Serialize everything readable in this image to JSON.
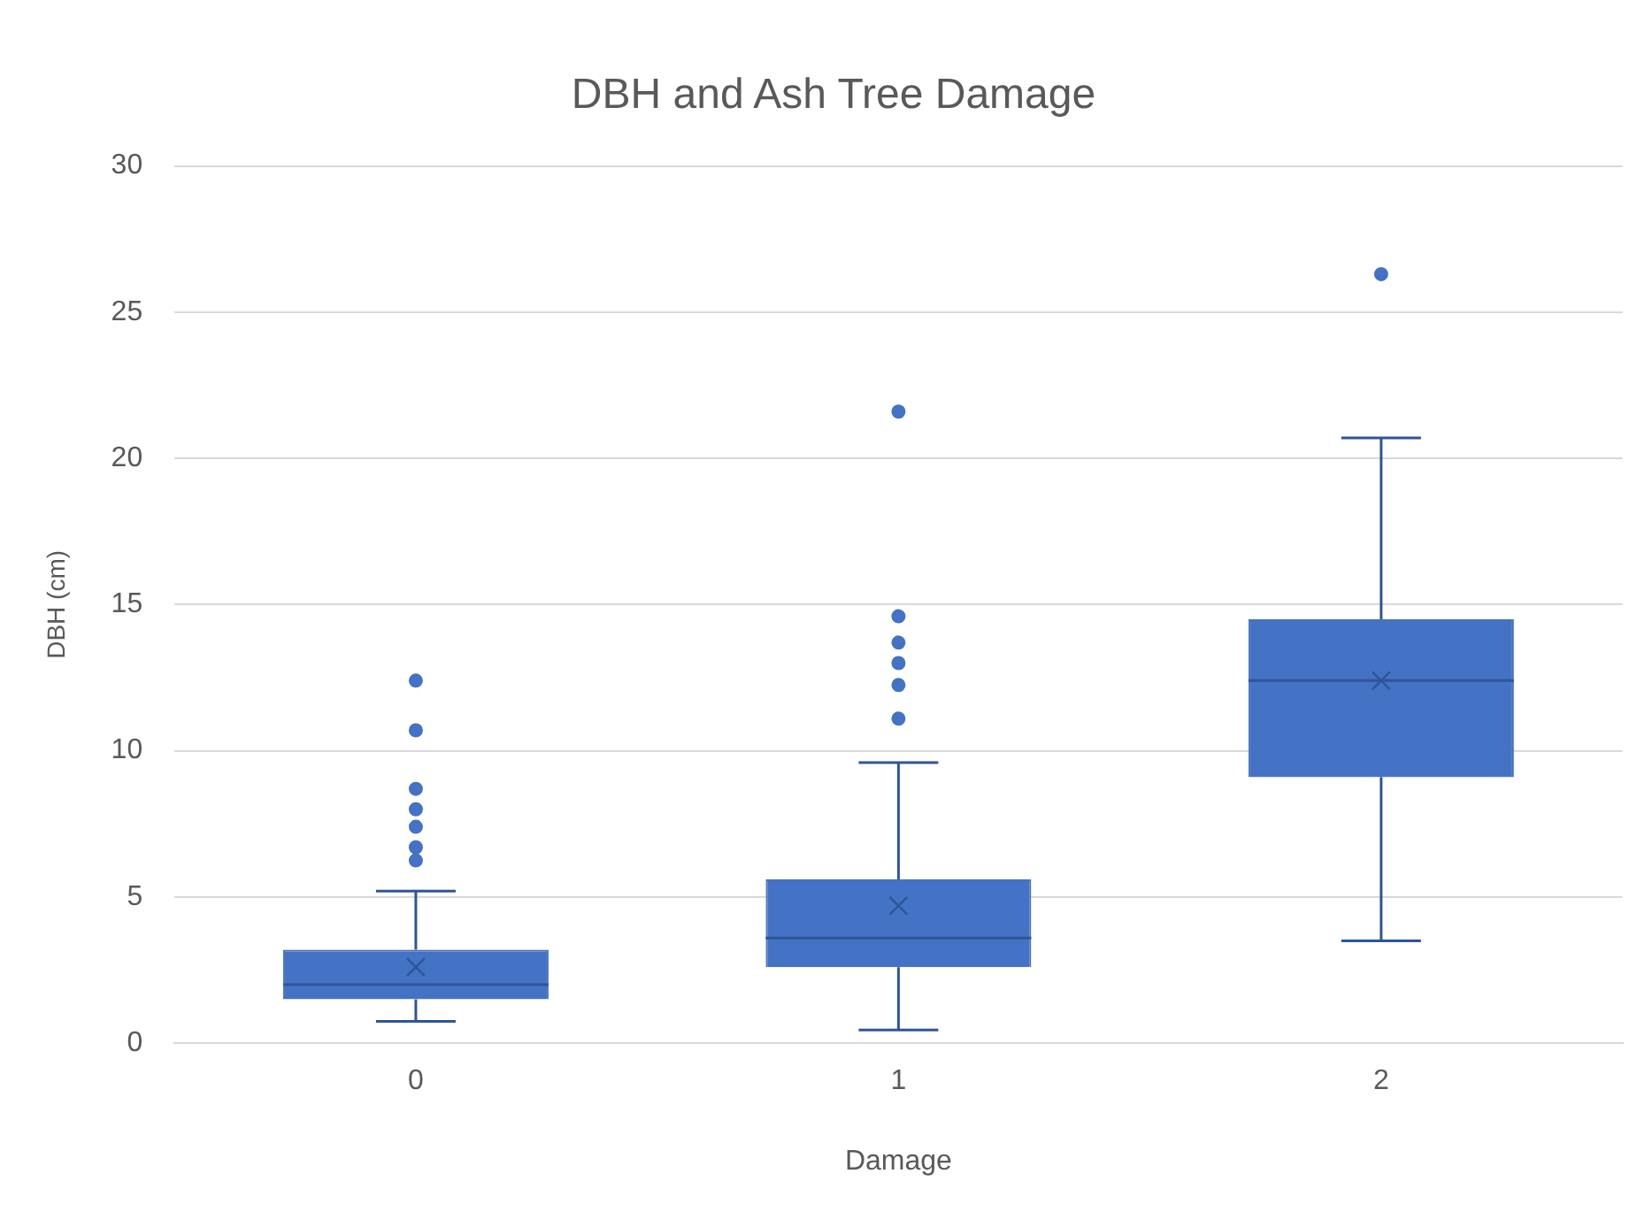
{
  "chart_data": {
    "type": "box",
    "title": "DBH and Ash Tree Damage",
    "xlabel": "Damage",
    "ylabel": "DBH (cm)",
    "categories": [
      "0",
      "1",
      "2"
    ],
    "color": "#4472c4",
    "boxes": [
      {
        "low": 0.75,
        "q1": 1.5,
        "median": 2.0,
        "q3": 3.2,
        "high": 5.2,
        "mean": 2.6,
        "outliers": [
          6.25,
          6.7,
          7.4,
          8.0,
          8.7,
          10.7,
          12.4
        ]
      },
      {
        "low": 0.45,
        "q1": 2.6,
        "median": 3.6,
        "q3": 5.6,
        "high": 9.6,
        "mean": 4.7,
        "outliers": [
          11.1,
          12.25,
          13.0,
          13.7,
          14.6,
          21.6
        ]
      },
      {
        "low": 3.5,
        "q1": 9.1,
        "median": 12.4,
        "q3": 14.5,
        "high": 20.7,
        "mean": 12.4,
        "outliers": [
          26.3
        ]
      }
    ],
    "ylim": [
      0,
      30
    ],
    "yticks": [
      0,
      5,
      10,
      15,
      20,
      25,
      30
    ],
    "grid": "y",
    "legend": false
  }
}
